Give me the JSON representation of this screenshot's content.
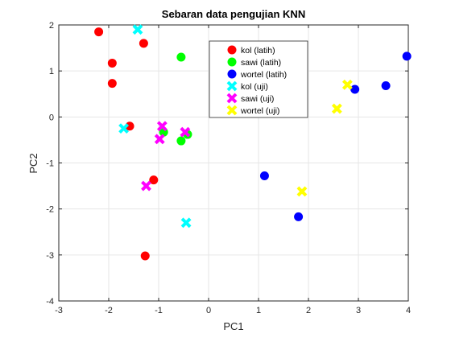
{
  "chart_data": {
    "type": "scatter",
    "title": "Sebaran data pengujian KNN",
    "xlabel": "PC1",
    "ylabel": "PC2",
    "xlim": [
      -3,
      4
    ],
    "ylim": [
      -4,
      2
    ],
    "xticks": [
      -3,
      -2,
      -1,
      0,
      1,
      2,
      3,
      4
    ],
    "yticks": [
      -4,
      -3,
      -2,
      -1,
      0,
      1,
      2
    ],
    "grid": true,
    "legend_position": "upper-center",
    "series": [
      {
        "name": "kol (latih)",
        "marker": "circle",
        "color": "#ff0000",
        "points": [
          [
            -2.2,
            1.85
          ],
          [
            -1.93,
            1.17
          ],
          [
            -1.93,
            0.73
          ],
          [
            -1.3,
            1.6
          ],
          [
            -1.58,
            -0.2
          ],
          [
            -1.1,
            -1.37
          ],
          [
            -1.27,
            -3.02
          ]
        ]
      },
      {
        "name": "sawi (latih)",
        "marker": "circle",
        "color": "#00ff00",
        "points": [
          [
            -0.55,
            1.3
          ],
          [
            -0.9,
            -0.33
          ],
          [
            -0.42,
            -0.38
          ],
          [
            -0.55,
            -0.52
          ]
        ]
      },
      {
        "name": "wortel (latih)",
        "marker": "circle",
        "color": "#0000ff",
        "points": [
          [
            3.97,
            1.32
          ],
          [
            2.93,
            0.6
          ],
          [
            3.55,
            0.68
          ],
          [
            1.12,
            -1.28
          ],
          [
            1.8,
            -2.17
          ]
        ]
      },
      {
        "name": "kol (uji)",
        "marker": "x",
        "color": "#00ffff",
        "points": [
          [
            -1.42,
            1.9
          ],
          [
            -1.7,
            -0.25
          ],
          [
            -0.45,
            -2.3
          ]
        ]
      },
      {
        "name": "sawi (uji)",
        "marker": "x",
        "color": "#ff00ff",
        "points": [
          [
            -0.93,
            -0.2
          ],
          [
            -0.98,
            -0.48
          ],
          [
            -0.47,
            -0.33
          ],
          [
            -1.25,
            -1.5
          ]
        ]
      },
      {
        "name": "wortel (uji)",
        "marker": "x",
        "color": "#ffff00",
        "points": [
          [
            2.78,
            0.7
          ],
          [
            2.57,
            0.18
          ],
          [
            1.87,
            -1.62
          ]
        ]
      }
    ]
  }
}
